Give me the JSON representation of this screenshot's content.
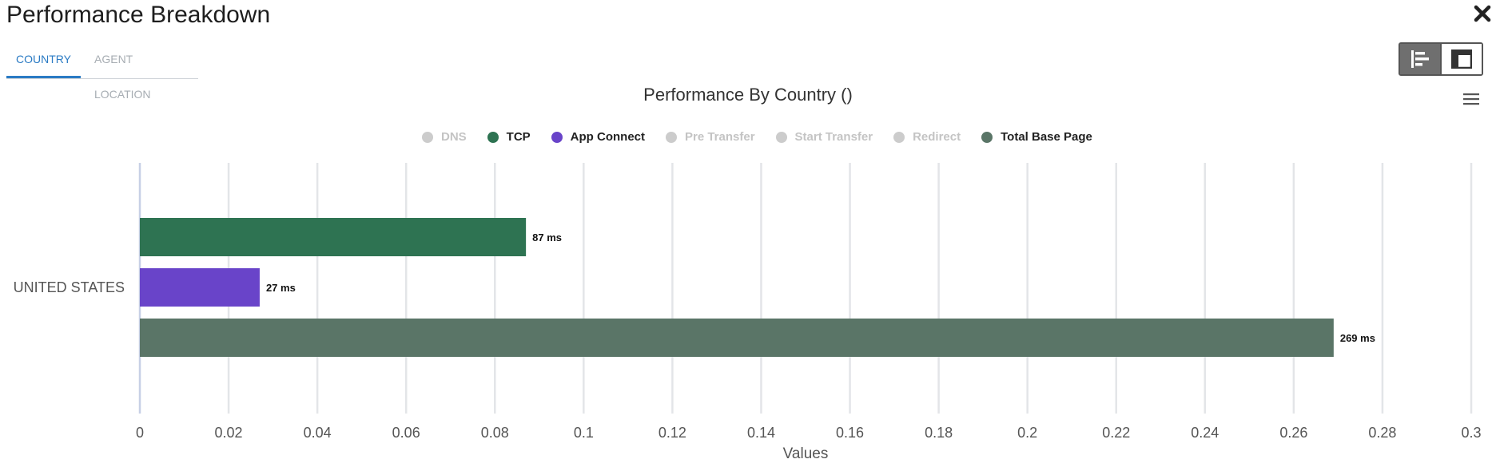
{
  "header": {
    "title": "Performance Breakdown",
    "close_icon": "close-icon"
  },
  "tabs": [
    {
      "label": "COUNTRY",
      "active": true
    },
    {
      "label": "AGENT LOCATION",
      "active": false
    }
  ],
  "view_toggle": {
    "options": [
      {
        "icon": "bar-chart-icon",
        "active": true
      },
      {
        "icon": "table-layout-icon",
        "active": false
      }
    ]
  },
  "chart_menu_icon": "hamburger-menu-icon",
  "chart_data": {
    "type": "bar",
    "orientation": "horizontal",
    "title": "Performance By Country ()",
    "categories": [
      "UNITED STATES"
    ],
    "legend": [
      {
        "name": "DNS",
        "color": "#cccccc",
        "visible": false
      },
      {
        "name": "TCP",
        "color": "#2e7352",
        "visible": true
      },
      {
        "name": "App Connect",
        "color": "#6944c9",
        "visible": true
      },
      {
        "name": "Pre Transfer",
        "color": "#cccccc",
        "visible": false
      },
      {
        "name": "Start Transfer",
        "color": "#cccccc",
        "visible": false
      },
      {
        "name": "Redirect",
        "color": "#cccccc",
        "visible": false
      },
      {
        "name": "Total Base Page",
        "color": "#5a7567",
        "visible": true
      }
    ],
    "series": [
      {
        "name": "TCP",
        "values": [
          0.087
        ],
        "label": "87 ms",
        "color": "#2e7352"
      },
      {
        "name": "App Connect",
        "values": [
          0.027
        ],
        "label": "27 ms",
        "color": "#6944c9"
      },
      {
        "name": "Total Base Page",
        "values": [
          0.269
        ],
        "label": "269 ms",
        "color": "#5a7567"
      }
    ],
    "xlabel": "Values",
    "xlim": [
      0,
      0.3
    ],
    "xticks": [
      "0",
      "0.02",
      "0.04",
      "0.06",
      "0.08",
      "0.1",
      "0.12",
      "0.14",
      "0.16",
      "0.18",
      "0.2",
      "0.22",
      "0.24",
      "0.26",
      "0.28",
      "0.3"
    ],
    "grid": true,
    "legend_position": "top"
  }
}
